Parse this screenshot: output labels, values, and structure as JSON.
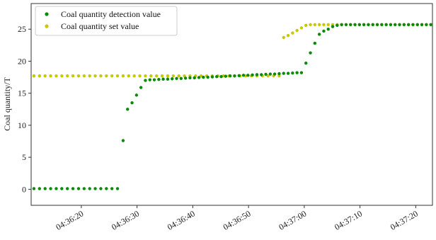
{
  "chart_data": {
    "type": "scatter",
    "ylabel": "Coal quantity/T",
    "xlabel": "",
    "x_unit": "time",
    "xlim": [
      "04:36:11",
      "04:37:23"
    ],
    "ylim": [
      -2.5,
      29
    ],
    "x_ticks": [
      "04:36:20",
      "04:36:30",
      "04:36:40",
      "04:36:50",
      "04:37:00",
      "04:37:10",
      "04:37:20"
    ],
    "y_ticks": [
      0,
      5,
      10,
      15,
      20,
      25
    ],
    "grid": false,
    "legend_position": "top-left",
    "series": [
      {
        "name": "Coal quantity detection value",
        "color": "#0a8a0a",
        "points": [
          [
            "04:36:11.5",
            0.1
          ],
          [
            "04:36:12.5",
            0.1
          ],
          [
            "04:36:13.5",
            0.1
          ],
          [
            "04:36:14.5",
            0.1
          ],
          [
            "04:36:15.5",
            0.1
          ],
          [
            "04:36:16.5",
            0.1
          ],
          [
            "04:36:17.5",
            0.1
          ],
          [
            "04:36:18.5",
            0.1
          ],
          [
            "04:36:19.5",
            0.1
          ],
          [
            "04:36:20.5",
            0.1
          ],
          [
            "04:36:21.5",
            0.1
          ],
          [
            "04:36:22.5",
            0.1
          ],
          [
            "04:36:23.5",
            0.1
          ],
          [
            "04:36:24.5",
            0.1
          ],
          [
            "04:36:25.5",
            0.1
          ],
          [
            "04:36:26.5",
            0.1
          ],
          [
            "04:36:27.5",
            7.6
          ],
          [
            "04:36:28.3",
            12.5
          ],
          [
            "04:36:29.1",
            13.5
          ],
          [
            "04:36:29.9",
            14.7
          ],
          [
            "04:36:30.7",
            15.9
          ],
          [
            "04:36:31.5",
            17.0
          ],
          [
            "04:36:32.3",
            17.1
          ],
          [
            "04:36:33.1",
            17.1
          ],
          [
            "04:36:33.9",
            17.15
          ],
          [
            "04:36:34.7",
            17.2
          ],
          [
            "04:36:35.5",
            17.2
          ],
          [
            "04:36:36.3",
            17.25
          ],
          [
            "04:36:37.1",
            17.3
          ],
          [
            "04:36:37.9",
            17.3
          ],
          [
            "04:36:38.7",
            17.35
          ],
          [
            "04:36:39.5",
            17.4
          ],
          [
            "04:36:40.3",
            17.4
          ],
          [
            "04:36:41.1",
            17.45
          ],
          [
            "04:36:41.9",
            17.5
          ],
          [
            "04:36:42.7",
            17.5
          ],
          [
            "04:36:43.5",
            17.55
          ],
          [
            "04:36:44.3",
            17.6
          ],
          [
            "04:36:45.1",
            17.6
          ],
          [
            "04:36:45.9",
            17.65
          ],
          [
            "04:36:46.7",
            17.7
          ],
          [
            "04:36:47.5",
            17.7
          ],
          [
            "04:36:48.3",
            17.75
          ],
          [
            "04:36:49.1",
            17.8
          ],
          [
            "04:36:49.9",
            17.8
          ],
          [
            "04:36:50.7",
            17.85
          ],
          [
            "04:36:51.5",
            17.9
          ],
          [
            "04:36:52.3",
            17.9
          ],
          [
            "04:36:53.1",
            17.95
          ],
          [
            "04:36:53.9",
            18.0
          ],
          [
            "04:36:54.7",
            18.0
          ],
          [
            "04:36:55.5",
            18.05
          ],
          [
            "04:36:56.3",
            18.1
          ],
          [
            "04:36:57.1",
            18.1
          ],
          [
            "04:36:57.9",
            18.15
          ],
          [
            "04:36:58.7",
            18.2
          ],
          [
            "04:36:59.5",
            18.2
          ],
          [
            "04:37:00.3",
            19.7
          ],
          [
            "04:37:01.1",
            21.3
          ],
          [
            "04:37:01.9",
            22.8
          ],
          [
            "04:37:02.7",
            24.2
          ],
          [
            "04:37:03.5",
            24.7
          ],
          [
            "04:37:04.3",
            25.0
          ],
          [
            "04:37:05.1",
            25.4
          ],
          [
            "04:37:05.9",
            25.6
          ],
          [
            "04:37:06.7",
            25.7
          ],
          [
            "04:37:07.5",
            25.7
          ],
          [
            "04:37:08.3",
            25.7
          ],
          [
            "04:37:09.1",
            25.7
          ],
          [
            "04:37:09.9",
            25.7
          ],
          [
            "04:37:10.7",
            25.7
          ],
          [
            "04:37:11.5",
            25.7
          ],
          [
            "04:37:12.3",
            25.7
          ],
          [
            "04:37:13.1",
            25.7
          ],
          [
            "04:37:13.9",
            25.7
          ],
          [
            "04:37:14.7",
            25.7
          ],
          [
            "04:37:15.5",
            25.7
          ],
          [
            "04:37:16.3",
            25.7
          ],
          [
            "04:37:17.1",
            25.7
          ],
          [
            "04:37:17.9",
            25.7
          ],
          [
            "04:37:18.7",
            25.7
          ],
          [
            "04:37:19.5",
            25.7
          ],
          [
            "04:37:20.3",
            25.7
          ],
          [
            "04:37:21.1",
            25.7
          ],
          [
            "04:37:21.9",
            25.7
          ],
          [
            "04:37:22.7",
            25.7
          ]
        ]
      },
      {
        "name": "Coal quantity set value",
        "color": "#c8c800",
        "points": [
          [
            "04:36:11.5",
            17.7
          ],
          [
            "04:36:12.5",
            17.7
          ],
          [
            "04:36:13.5",
            17.7
          ],
          [
            "04:36:14.5",
            17.7
          ],
          [
            "04:36:15.5",
            17.7
          ],
          [
            "04:36:16.5",
            17.7
          ],
          [
            "04:36:17.5",
            17.7
          ],
          [
            "04:36:18.5",
            17.7
          ],
          [
            "04:36:19.5",
            17.7
          ],
          [
            "04:36:20.5",
            17.7
          ],
          [
            "04:36:21.5",
            17.7
          ],
          [
            "04:36:22.5",
            17.7
          ],
          [
            "04:36:23.5",
            17.7
          ],
          [
            "04:36:24.5",
            17.7
          ],
          [
            "04:36:25.5",
            17.7
          ],
          [
            "04:36:26.5",
            17.7
          ],
          [
            "04:36:27.5",
            17.7
          ],
          [
            "04:36:28.5",
            17.7
          ],
          [
            "04:36:29.5",
            17.7
          ],
          [
            "04:36:30.5",
            17.7
          ],
          [
            "04:36:31.5",
            17.7
          ],
          [
            "04:36:32.5",
            17.7
          ],
          [
            "04:36:33.5",
            17.7
          ],
          [
            "04:36:34.5",
            17.7
          ],
          [
            "04:36:35.5",
            17.7
          ],
          [
            "04:36:36.5",
            17.7
          ],
          [
            "04:36:37.5",
            17.7
          ],
          [
            "04:36:38.5",
            17.7
          ],
          [
            "04:36:39.5",
            17.7
          ],
          [
            "04:36:40.5",
            17.7
          ],
          [
            "04:36:41.5",
            17.7
          ],
          [
            "04:36:42.5",
            17.7
          ],
          [
            "04:36:43.5",
            17.7
          ],
          [
            "04:36:44.5",
            17.7
          ],
          [
            "04:36:45.5",
            17.7
          ],
          [
            "04:36:46.5",
            17.7
          ],
          [
            "04:36:47.5",
            17.7
          ],
          [
            "04:36:48.5",
            17.7
          ],
          [
            "04:36:49.5",
            17.7
          ],
          [
            "04:36:50.5",
            17.7
          ],
          [
            "04:36:51.5",
            17.7
          ],
          [
            "04:36:52.5",
            17.7
          ],
          [
            "04:36:53.5",
            17.7
          ],
          [
            "04:36:54.5",
            17.7
          ],
          [
            "04:36:55.5",
            17.7
          ],
          [
            "04:36:56.3",
            23.7
          ],
          [
            "04:36:57.1",
            24.0
          ],
          [
            "04:36:57.9",
            24.4
          ],
          [
            "04:36:58.7",
            24.8
          ],
          [
            "04:36:59.5",
            25.2
          ],
          [
            "04:37:00.3",
            25.6
          ],
          [
            "04:37:01.1",
            25.7
          ],
          [
            "04:37:01.9",
            25.7
          ],
          [
            "04:37:02.7",
            25.7
          ],
          [
            "04:37:03.5",
            25.7
          ],
          [
            "04:37:04.3",
            25.7
          ],
          [
            "04:37:05.1",
            25.7
          ],
          [
            "04:37:05.9",
            25.7
          ],
          [
            "04:37:06.7",
            25.7
          ],
          [
            "04:37:07.5",
            25.7
          ],
          [
            "04:37:08.3",
            25.7
          ],
          [
            "04:37:09.1",
            25.7
          ],
          [
            "04:37:09.9",
            25.7
          ],
          [
            "04:37:10.7",
            25.7
          ],
          [
            "04:37:11.5",
            25.7
          ],
          [
            "04:37:12.3",
            25.7
          ],
          [
            "04:37:13.1",
            25.7
          ],
          [
            "04:37:13.9",
            25.7
          ],
          [
            "04:37:14.7",
            25.7
          ],
          [
            "04:37:15.5",
            25.7
          ],
          [
            "04:37:16.3",
            25.7
          ],
          [
            "04:37:17.1",
            25.7
          ],
          [
            "04:37:17.9",
            25.7
          ],
          [
            "04:37:18.7",
            25.7
          ],
          [
            "04:37:19.5",
            25.7
          ],
          [
            "04:37:20.3",
            25.7
          ],
          [
            "04:37:21.1",
            25.7
          ],
          [
            "04:37:21.9",
            25.7
          ],
          [
            "04:37:22.7",
            25.7
          ]
        ]
      }
    ]
  }
}
